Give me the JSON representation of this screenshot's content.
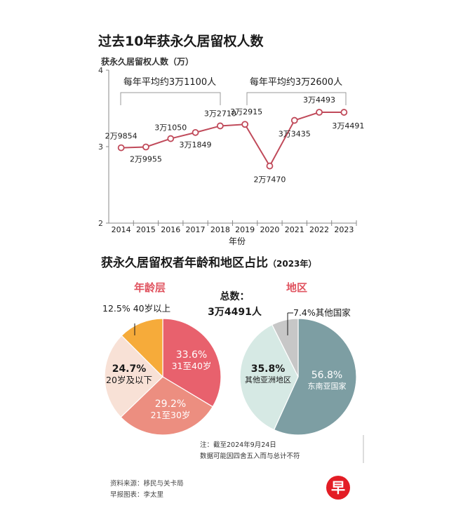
{
  "line_title": "过去10年获永久居留权人数",
  "line_ylabel": "获永久居留权人数（万）",
  "line_xlabel": "年份",
  "avg1_label": "每年平均约3万1100人",
  "avg2_label": "每年平均约3万2600人",
  "pie_title": "获永久居留权者年龄和地区占比",
  "pie_title_suffix": "（2023年）",
  "age_title": "年龄层",
  "region_title": "地区",
  "total_label": "总数：",
  "total_value": "3万4491人",
  "note_line1": "注：截至2024年9月24日",
  "note_line2": "数据可能因四舍五入而与总计不符",
  "source_line1": "资料来源：移民与关卡局",
  "source_line2": "早报图表：李太里",
  "logo_text": "早",
  "chart_data": [
    {
      "type": "line",
      "title": "过去10年获永久居留权人数",
      "ylabel": "获永久居留权人数（万）",
      "xlabel": "年份",
      "ylim": [
        2,
        4
      ],
      "yticks": [
        "2",
        "3",
        "4"
      ],
      "x": [
        "2014",
        "2015",
        "2016",
        "2017",
        "2018",
        "2019",
        "2020",
        "2021",
        "2022",
        "2023"
      ],
      "values": [
        29854,
        29955,
        31050,
        31849,
        32710,
        32915,
        27470,
        33435,
        34493,
        34491
      ],
      "labels": [
        "2万9854",
        "2万9955",
        "3万1050",
        "3万1849",
        "3万2710",
        "3万2915",
        "2万7470",
        "3万3435",
        "3万4493",
        "3万4491"
      ],
      "color": "#c04a5a",
      "marker_fill": "#ffffff"
    },
    {
      "type": "pie",
      "title": "年龄层",
      "slices": [
        {
          "percent": 33.6,
          "pct_label": "33.6%",
          "name": "31至40岁",
          "color": "#e8616d",
          "inside": true
        },
        {
          "percent": 29.2,
          "pct_label": "29.2%",
          "name": "21至30岁",
          "color": "#ec8e80",
          "inside": true
        },
        {
          "percent": 24.7,
          "pct_label": "24.7%",
          "name": "20岁及以下",
          "color": "#f8e1d6",
          "inside": false
        },
        {
          "percent": 12.5,
          "pct_label": "12.5%",
          "name": "40岁以上",
          "color": "#f6ab3a",
          "inside": false
        }
      ]
    },
    {
      "type": "pie",
      "title": "地区",
      "slices": [
        {
          "percent": 56.8,
          "pct_label": "56.8%",
          "name": "东南亚国家",
          "color": "#7d9ea3",
          "inside": true
        },
        {
          "percent": 35.8,
          "pct_label": "35.8%",
          "name": "其他亚洲地区",
          "color": "#d6e9e4",
          "inside": false
        },
        {
          "percent": 7.4,
          "pct_label": "7.4%",
          "name": "其他国家",
          "color": "#c7c7c7",
          "inside": false
        }
      ]
    }
  ]
}
